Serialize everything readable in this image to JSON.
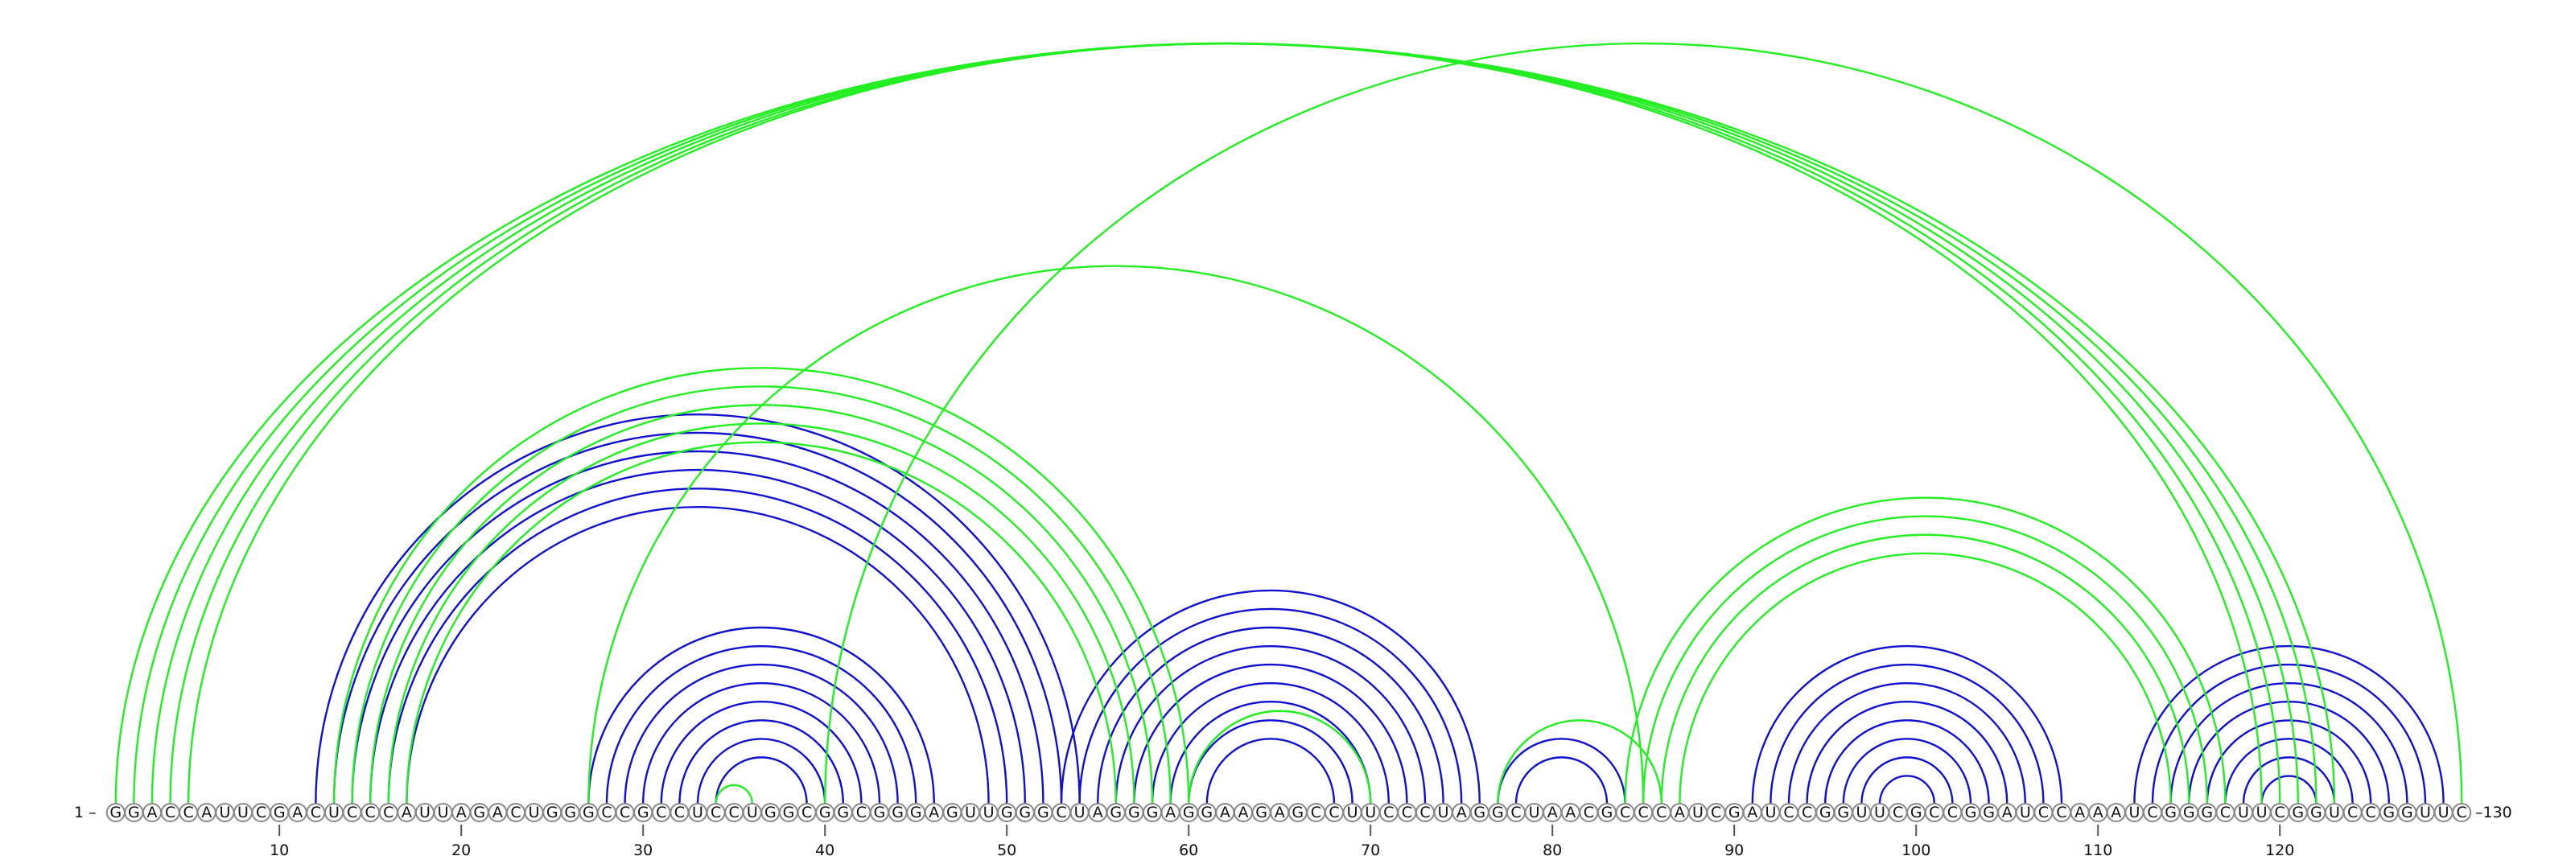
{
  "sequence": "GGACCAUUCGACUCCCAUUAGACUGGGCCGCCUCCUGGCGGCGGGAGUUGGGCUAGGGAGGAAGAGCCUUCCCUAGGCUAACGCCCAUCGAUCCGGUUCGCCGGAUCCAAAUCGGGCUUCGGUCCGGUUC",
  "start_label": "1 –",
  "end_label": "–130",
  "tick_labels": [
    "10",
    "20",
    "30",
    "40",
    "50",
    "60",
    "70",
    "80",
    "90",
    "100",
    "110",
    "120"
  ],
  "colors": {
    "blue": "#1010d0",
    "green": "#22ee22"
  },
  "arcs": [
    {
      "i": 12,
      "j": 54,
      "c": "blue"
    },
    {
      "i": 13,
      "j": 53,
      "c": "blue"
    },
    {
      "i": 14,
      "j": 52,
      "c": "blue"
    },
    {
      "i": 15,
      "j": 51,
      "c": "blue"
    },
    {
      "i": 16,
      "j": 50,
      "c": "blue"
    },
    {
      "i": 17,
      "j": 49,
      "c": "blue"
    },
    {
      "i": 27,
      "j": 46,
      "c": "blue"
    },
    {
      "i": 28,
      "j": 45,
      "c": "blue"
    },
    {
      "i": 29,
      "j": 44,
      "c": "blue"
    },
    {
      "i": 30,
      "j": 43,
      "c": "blue"
    },
    {
      "i": 31,
      "j": 42,
      "c": "blue"
    },
    {
      "i": 32,
      "j": 41,
      "c": "blue"
    },
    {
      "i": 33,
      "j": 40,
      "c": "blue"
    },
    {
      "i": 34,
      "j": 39,
      "c": "blue"
    },
    {
      "i": 53,
      "j": 76,
      "c": "blue"
    },
    {
      "i": 54,
      "j": 75,
      "c": "blue"
    },
    {
      "i": 55,
      "j": 74,
      "c": "blue"
    },
    {
      "i": 56,
      "j": 73,
      "c": "blue"
    },
    {
      "i": 57,
      "j": 72,
      "c": "blue"
    },
    {
      "i": 58,
      "j": 71,
      "c": "blue"
    },
    {
      "i": 59,
      "j": 70,
      "c": "blue"
    },
    {
      "i": 60,
      "j": 69,
      "c": "blue"
    },
    {
      "i": 61,
      "j": 68,
      "c": "blue"
    },
    {
      "i": 77,
      "j": 84,
      "c": "blue"
    },
    {
      "i": 78,
      "j": 83,
      "c": "blue"
    },
    {
      "i": 91,
      "j": 108,
      "c": "blue"
    },
    {
      "i": 92,
      "j": 107,
      "c": "blue"
    },
    {
      "i": 93,
      "j": 106,
      "c": "blue"
    },
    {
      "i": 94,
      "j": 105,
      "c": "blue"
    },
    {
      "i": 95,
      "j": 104,
      "c": "blue"
    },
    {
      "i": 96,
      "j": 103,
      "c": "blue"
    },
    {
      "i": 97,
      "j": 102,
      "c": "blue"
    },
    {
      "i": 98,
      "j": 101,
      "c": "blue"
    },
    {
      "i": 112,
      "j": 129,
      "c": "blue"
    },
    {
      "i": 113,
      "j": 128,
      "c": "blue"
    },
    {
      "i": 114,
      "j": 127,
      "c": "blue"
    },
    {
      "i": 115,
      "j": 126,
      "c": "blue"
    },
    {
      "i": 116,
      "j": 125,
      "c": "blue"
    },
    {
      "i": 117,
      "j": 124,
      "c": "blue"
    },
    {
      "i": 118,
      "j": 123,
      "c": "blue"
    },
    {
      "i": 119,
      "j": 122,
      "c": "blue"
    },
    {
      "i": 1,
      "j": 123,
      "c": "green"
    },
    {
      "i": 2,
      "j": 122,
      "c": "green"
    },
    {
      "i": 3,
      "j": 121,
      "c": "green"
    },
    {
      "i": 4,
      "j": 120,
      "c": "green"
    },
    {
      "i": 5,
      "j": 119,
      "c": "green"
    },
    {
      "i": 13,
      "j": 60,
      "c": "green"
    },
    {
      "i": 14,
      "j": 59,
      "c": "green"
    },
    {
      "i": 15,
      "j": 58,
      "c": "green"
    },
    {
      "i": 16,
      "j": 57,
      "c": "green"
    },
    {
      "i": 17,
      "j": 56,
      "c": "green"
    },
    {
      "i": 27,
      "j": 85,
      "c": "green"
    },
    {
      "i": 34,
      "j": 36,
      "c": "green"
    },
    {
      "i": 60,
      "j": 70,
      "c": "green"
    },
    {
      "i": 77,
      "j": 86,
      "c": "green"
    },
    {
      "i": 84,
      "j": 117,
      "c": "green"
    },
    {
      "i": 85,
      "j": 116,
      "c": "green"
    },
    {
      "i": 86,
      "j": 115,
      "c": "green"
    },
    {
      "i": 87,
      "j": 114,
      "c": "green"
    },
    {
      "i": 40,
      "j": 130,
      "c": "green"
    }
  ]
}
